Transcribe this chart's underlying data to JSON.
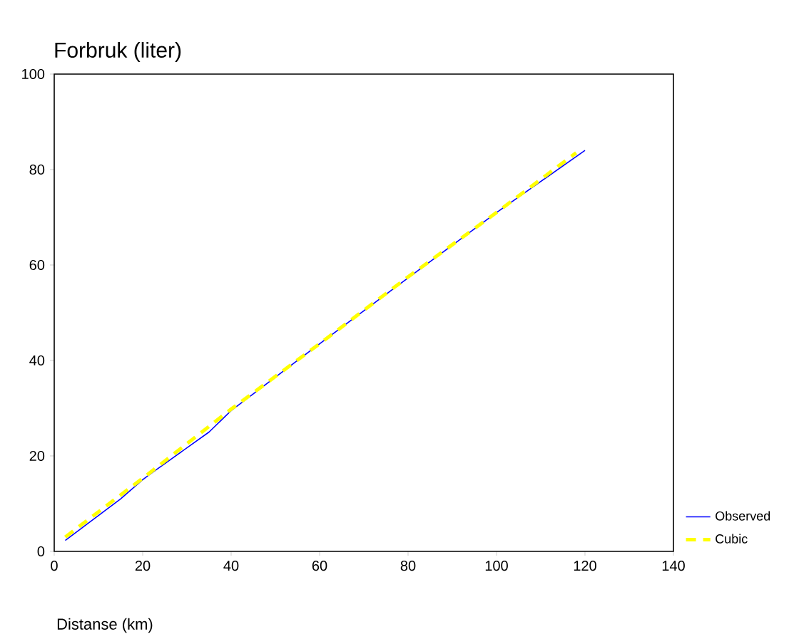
{
  "chart_data": {
    "type": "line",
    "ylabel": "Forbruk (liter)",
    "xlabel": "Distanse (km)",
    "xlim": [
      0,
      140
    ],
    "ylim": [
      0,
      100
    ],
    "xticks": [
      0,
      20,
      40,
      60,
      80,
      100,
      120,
      140
    ],
    "yticks": [
      0,
      20,
      40,
      60,
      80,
      100
    ],
    "grid": false,
    "legend": "bottom right",
    "series": [
      {
        "name": "Observed",
        "color": "#0000ff",
        "line_style": "solid",
        "x": [
          2.5,
          15,
          20,
          22,
          35,
          40,
          60,
          80,
          100,
          120
        ],
        "values": [
          2.3,
          11,
          15,
          16.4,
          25,
          29.5,
          43.5,
          57.3,
          71,
          84
        ]
      },
      {
        "name": "Cubic",
        "color": "#ffff00",
        "line_style": "dashed",
        "x": [
          2.5,
          20,
          40,
          60,
          80,
          100,
          118
        ],
        "values": [
          3,
          15.3,
          29.8,
          43.5,
          57.5,
          71,
          83.5
        ]
      }
    ]
  }
}
